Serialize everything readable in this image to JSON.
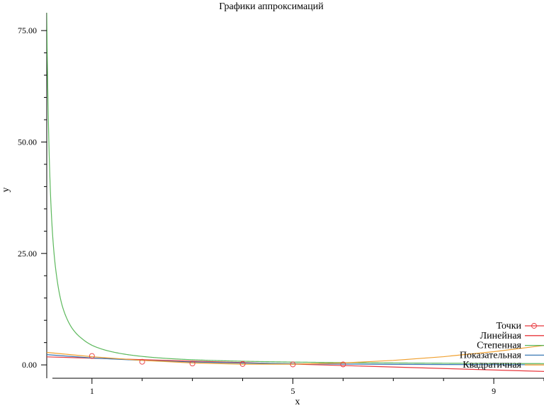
{
  "chart_data": {
    "type": "line",
    "title": "Графики аппроксимаций",
    "xlabel": "x",
    "ylabel": "y",
    "xlim": [
      0.1,
      10
    ],
    "ylim": [
      -3,
      79
    ],
    "xticks": [
      1,
      5,
      9
    ],
    "xtick_labels": [
      "1",
      "5",
      "9"
    ],
    "yticks": [
      0,
      25,
      50,
      75
    ],
    "ytick_labels": [
      "0.00",
      "25.00",
      "50.00",
      "75.00"
    ],
    "legend_position": "bottom-right",
    "points": {
      "name": "Точки",
      "color": "#e8383d",
      "x": [
        1,
        2,
        3,
        4,
        5,
        6
      ],
      "y": [
        2.0,
        0.7,
        0.3,
        0.2,
        0.1,
        0.1
      ]
    },
    "series": [
      {
        "name": "Линейная",
        "color": "#e8383d",
        "x": [
          0.1,
          2,
          4,
          6,
          8,
          10
        ],
        "y": [
          1.8,
          1.17,
          0.51,
          -0.15,
          -0.81,
          -1.47
        ]
      },
      {
        "name": "Степенная",
        "color": "#5cb85c",
        "x": [
          0.1,
          0.12,
          0.15,
          0.2,
          0.25,
          0.3,
          0.4,
          0.5,
          0.6,
          0.7,
          0.8,
          1,
          1.5,
          2,
          3,
          4,
          5,
          6,
          7,
          8,
          9,
          10
        ],
        "y": [
          79.0,
          62.1,
          46.6,
          32.2,
          24.4,
          19.6,
          13.6,
          10.4,
          8.3,
          6.9,
          5.9,
          4.4,
          2.7,
          1.9,
          1.15,
          0.82,
          0.63,
          0.51,
          0.43,
          0.37,
          0.32,
          0.29
        ]
      },
      {
        "name": "Показательная",
        "color": "#3a78b5",
        "x": [
          0.1,
          1,
          2,
          3,
          4,
          5,
          6,
          7,
          8,
          9,
          10
        ],
        "y": [
          2.3,
          1.55,
          1.0,
          0.65,
          0.42,
          0.27,
          0.18,
          0.12,
          0.08,
          0.05,
          0.03
        ]
      },
      {
        "name": "Квадратичная",
        "color": "#f0a030",
        "x": [
          0.1,
          1,
          2,
          3,
          4,
          5,
          6,
          7,
          8,
          9,
          10
        ],
        "y": [
          2.8,
          1.84,
          1.0,
          0.44,
          0.16,
          0.16,
          0.44,
          1.0,
          1.84,
          2.96,
          4.36
        ]
      }
    ]
  }
}
